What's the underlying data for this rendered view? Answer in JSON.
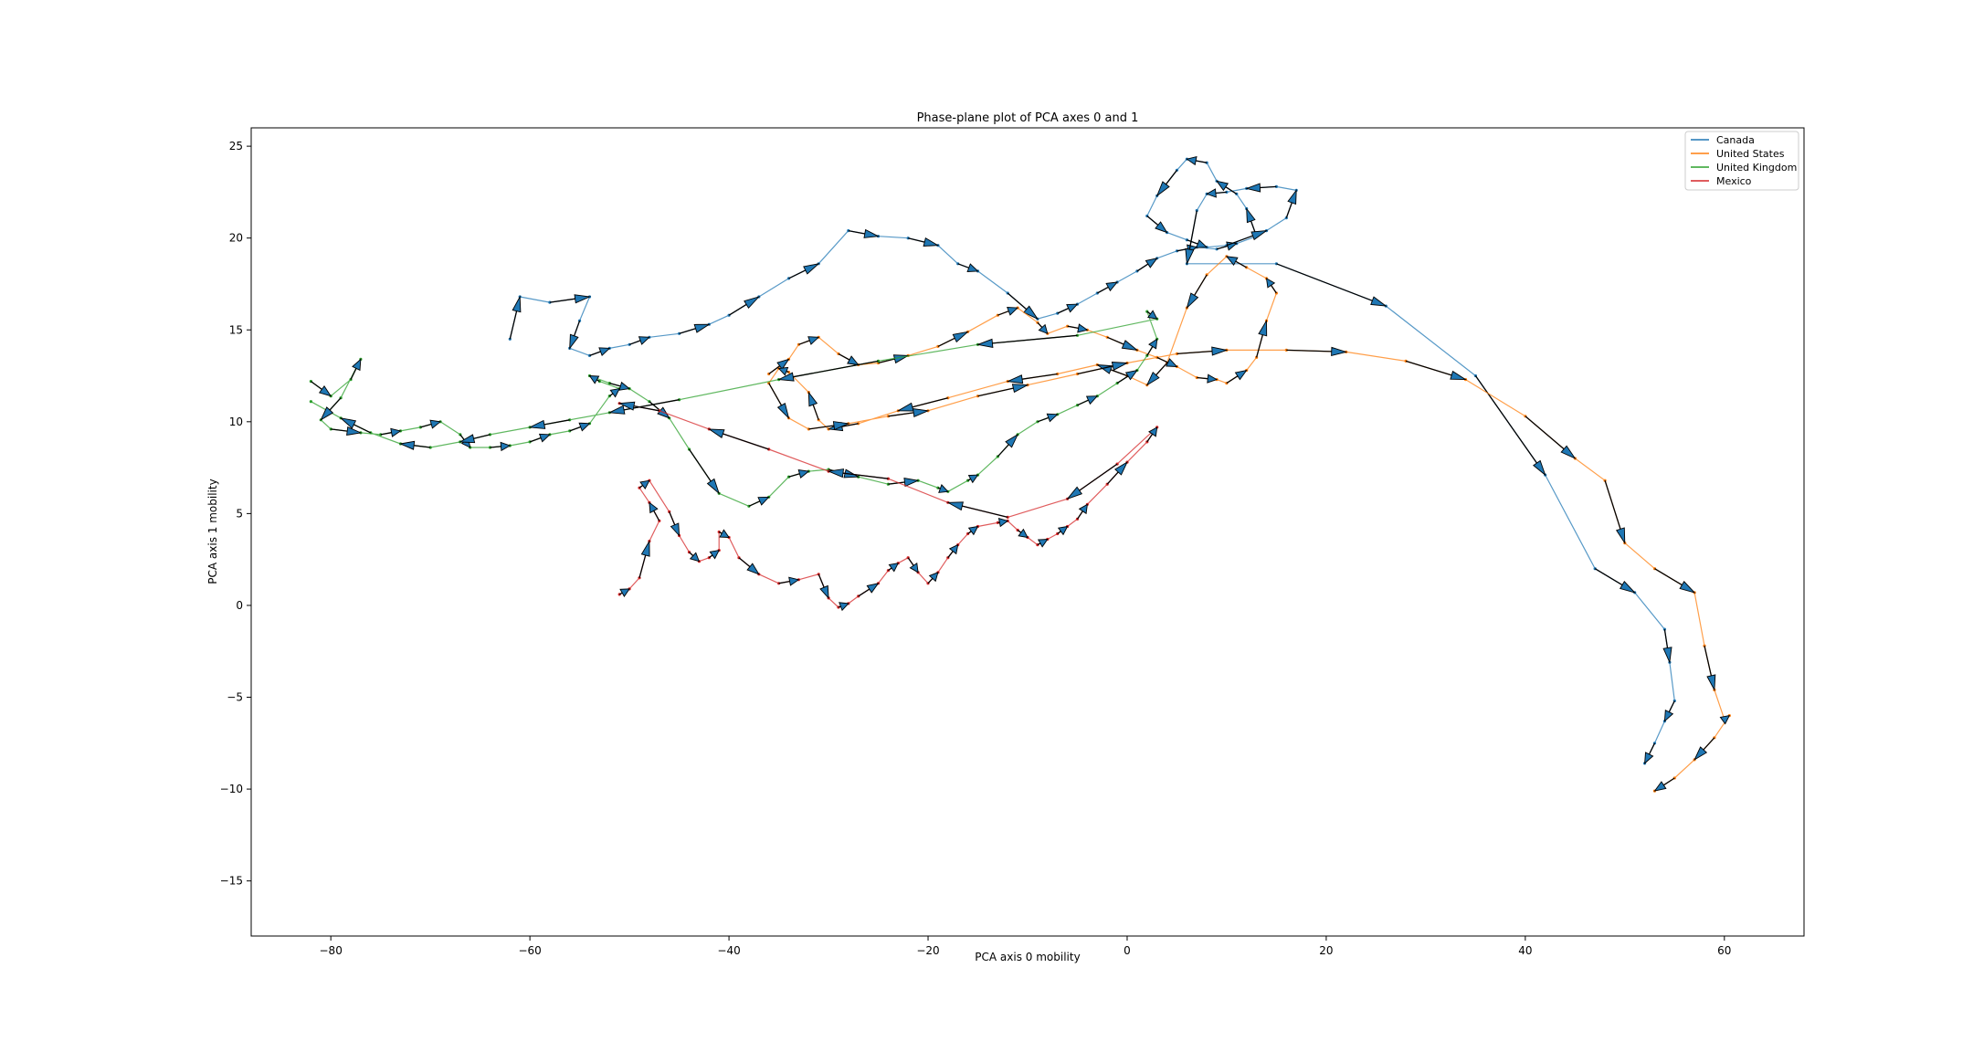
{
  "chart_data": {
    "type": "line",
    "title": "Phase-plane plot of PCA axes 0 and 1",
    "xlabel": "PCA axis 0 mobility",
    "ylabel": "PCA axis 1 mobility",
    "xlim": [
      -88,
      68
    ],
    "ylim": [
      -18,
      26
    ],
    "xticks": [
      -80,
      -60,
      -40,
      -20,
      0,
      20,
      40,
      60
    ],
    "yticks": [
      25,
      20,
      15,
      10,
      5,
      0,
      -5,
      -10,
      -15
    ],
    "grid": false,
    "legend_position": "top-right",
    "series": [
      {
        "name": "Canada",
        "color": "#1f77b4",
        "x": [
          -62,
          -61,
          -58,
          -54,
          -55,
          -56,
          -54,
          -52,
          -50,
          -48,
          -45,
          -42,
          -40,
          -37,
          -34,
          -31,
          -28,
          -25,
          -22,
          -19,
          -17,
          -15,
          -12,
          -9,
          -7,
          -5,
          -3,
          -1,
          1,
          3,
          5,
          7,
          9,
          11,
          13,
          12,
          11,
          9,
          8,
          6,
          5,
          3,
          2,
          4,
          6,
          8,
          10,
          14,
          16,
          17,
          15,
          12,
          10,
          8,
          7,
          6,
          15,
          26,
          35,
          42,
          47,
          51,
          54,
          54.5,
          55,
          54,
          53,
          52
        ],
        "y": [
          14.5,
          16.8,
          16.5,
          16.8,
          15.5,
          14.0,
          13.6,
          14.0,
          14.2,
          14.6,
          14.8,
          15.3,
          15.8,
          16.8,
          17.8,
          18.6,
          20.4,
          20.1,
          20.0,
          19.6,
          18.6,
          18.2,
          17.0,
          15.6,
          15.9,
          16.4,
          17.0,
          17.6,
          18.2,
          18.9,
          19.3,
          19.5,
          19.4,
          19.7,
          20.1,
          21.6,
          22.4,
          23.1,
          24.1,
          24.3,
          23.7,
          22.3,
          21.2,
          20.3,
          19.9,
          19.5,
          19.6,
          20.4,
          21.1,
          22.6,
          22.8,
          22.7,
          22.5,
          22.4,
          21.5,
          18.6,
          18.6,
          16.3,
          12.5,
          7.1,
          2.0,
          0.7,
          -1.3,
          -3.1,
          -5.2,
          -6.3,
          -7.5,
          -8.6
        ]
      },
      {
        "name": "United States",
        "color": "#ff7f0e",
        "x": [
          -36,
          -34,
          -33,
          -31,
          -29,
          -27,
          -25,
          -22,
          -19,
          -16,
          -13,
          -11,
          -9,
          -8,
          -6,
          -4,
          -2,
          1,
          3,
          5,
          7,
          9,
          10,
          12,
          13,
          14,
          15,
          14,
          12,
          10,
          8,
          6,
          4,
          2,
          0,
          -3,
          -7,
          -12,
          -18,
          -23,
          -27,
          -30,
          -31,
          -32,
          -34,
          -35,
          -36,
          -34,
          -32,
          -28,
          -24,
          -20,
          -15,
          -10,
          -5,
          0,
          5,
          10,
          16,
          22,
          28,
          34,
          40,
          45,
          48,
          50,
          53,
          57,
          58,
          59,
          60,
          60.5,
          59,
          57,
          55,
          53
        ],
        "y": [
          12.6,
          13.4,
          14.2,
          14.6,
          13.7,
          13.1,
          13.2,
          13.6,
          14.1,
          14.9,
          15.8,
          16.2,
          15.4,
          14.8,
          15.2,
          15.0,
          14.6,
          13.9,
          13.5,
          13.0,
          12.4,
          12.3,
          12.1,
          12.8,
          13.5,
          15.5,
          17.0,
          17.8,
          18.4,
          19.0,
          18.0,
          16.2,
          13.2,
          12.0,
          12.5,
          13.1,
          12.6,
          12.2,
          11.3,
          10.6,
          9.9,
          9.6,
          10.1,
          11.6,
          12.7,
          12.9,
          12.1,
          10.2,
          9.6,
          9.9,
          10.3,
          10.6,
          11.4,
          12.0,
          12.6,
          13.2,
          13.7,
          13.9,
          13.9,
          13.8,
          13.3,
          12.3,
          10.3,
          8.0,
          6.8,
          3.4,
          2.0,
          0.7,
          -2.2,
          -4.6,
          -6.2,
          -6.0,
          -7.2,
          -8.4,
          -9.4,
          -10.1
        ]
      },
      {
        "name": "United Kingdom",
        "color": "#2ca02c",
        "x": [
          -82,
          -80,
          -78,
          -77,
          -79,
          -81,
          -80,
          -77,
          -75,
          -73,
          -71,
          -69,
          -67,
          -66,
          -64,
          -62,
          -60,
          -58,
          -56,
          -54,
          -52,
          -51,
          -53,
          -54,
          -52,
          -50,
          -48,
          -46,
          -44,
          -41,
          -38,
          -36,
          -34,
          -32,
          -30,
          -27,
          -24,
          -21,
          -19,
          -18,
          -16,
          -15,
          -13,
          -11,
          -9,
          -7,
          -5,
          -3,
          -1,
          1,
          2,
          3,
          2,
          3,
          -5,
          -15,
          -25,
          -35,
          -45,
          -52,
          -56,
          -60,
          -64,
          -67,
          -70,
          -73,
          -76,
          -79,
          -82
        ],
        "y": [
          12.2,
          11.4,
          12.3,
          13.4,
          11.3,
          10.1,
          9.6,
          9.4,
          9.3,
          9.5,
          9.7,
          10.0,
          9.3,
          8.6,
          8.6,
          8.7,
          8.9,
          9.3,
          9.5,
          9.9,
          11.4,
          11.8,
          12.2,
          12.5,
          12.1,
          11.8,
          11.1,
          10.2,
          8.5,
          6.1,
          5.4,
          5.9,
          7.0,
          7.3,
          7.4,
          7.0,
          6.6,
          6.8,
          6.4,
          6.2,
          6.8,
          7.1,
          8.1,
          9.3,
          10.0,
          10.4,
          10.9,
          11.4,
          12.1,
          12.8,
          13.6,
          14.5,
          16.0,
          15.6,
          14.7,
          14.2,
          13.3,
          12.3,
          11.2,
          10.5,
          10.1,
          9.7,
          9.3,
          8.9,
          8.6,
          8.8,
          9.4,
          10.2,
          11.1
        ]
      },
      {
        "name": "Mexico",
        "color": "#d62728",
        "x": [
          -51,
          -50,
          -49,
          -48,
          -47,
          -48,
          -49,
          -48,
          -46,
          -45,
          -44,
          -43,
          -42,
          -41,
          -41,
          -40,
          -39,
          -37,
          -35,
          -33,
          -31,
          -30,
          -29,
          -28,
          -27,
          -25,
          -24,
          -23,
          -22,
          -21,
          -20,
          -19,
          -18,
          -17,
          -16,
          -15,
          -13,
          -12,
          -11,
          -10,
          -9,
          -8,
          -7,
          -6,
          -5,
          -4,
          -2,
          0,
          2,
          3,
          -1,
          -6,
          -12,
          -18,
          -24,
          -30,
          -36,
          -42,
          -47,
          -51
        ],
        "y": [
          0.6,
          0.9,
          1.5,
          3.5,
          4.6,
          5.6,
          6.4,
          6.8,
          5.1,
          3.8,
          2.9,
          2.4,
          2.6,
          3.0,
          4.0,
          3.7,
          2.6,
          1.7,
          1.2,
          1.4,
          1.7,
          0.4,
          -0.1,
          0.1,
          0.5,
          1.2,
          1.9,
          2.3,
          2.6,
          1.8,
          1.2,
          1.8,
          2.6,
          3.3,
          3.9,
          4.3,
          4.5,
          4.6,
          4.1,
          3.7,
          3.3,
          3.6,
          3.9,
          4.3,
          4.7,
          5.5,
          6.6,
          7.8,
          8.9,
          9.7,
          7.7,
          5.8,
          4.8,
          5.6,
          6.9,
          7.3,
          8.5,
          9.6,
          10.6,
          11.0
        ]
      }
    ]
  }
}
